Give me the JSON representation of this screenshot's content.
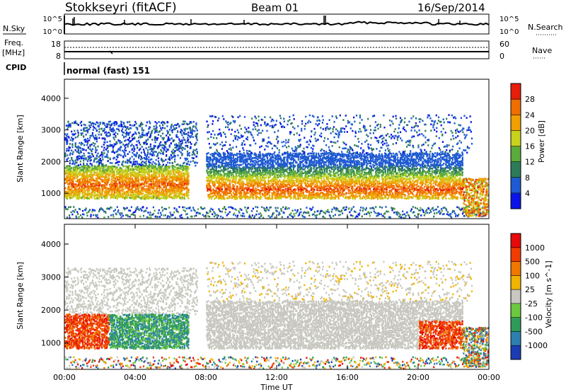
{
  "header": {
    "station": "Stokkseyri (fitACF)",
    "beam": "Beam 01",
    "date": "16/Sep/2014"
  },
  "noise_panel": {
    "left_label": "N.Sky",
    "right_label": "N.Search",
    "left_ticks": [
      "10^5",
      "10^0"
    ],
    "right_ticks": [
      "10^5",
      "10^0"
    ]
  },
  "freq_panel": {
    "left_label_top": "Freq.",
    "left_label_unit": "[MHz]",
    "left_ticks": [
      "18",
      "8"
    ],
    "right_label": "Nave",
    "right_ticks": [
      "60",
      "0"
    ]
  },
  "cpid": {
    "label": "CPID",
    "value": "normal (fast) 151"
  },
  "chart_data": [
    {
      "type": "heatmap",
      "title": "",
      "parameter": "Power",
      "ylabel": "Slant Range [km]",
      "xlabel": "",
      "ylim": [
        200,
        4600
      ],
      "yticks": [
        "1000",
        "2000",
        "3000",
        "4000"
      ],
      "colorbar": {
        "label": "Power [dB]",
        "ticks": [
          "28",
          "24",
          "20",
          "16",
          "12",
          "8",
          "4"
        ],
        "colors": [
          "#0a14e6",
          "#1e5ad2",
          "#2e7b5a",
          "#5aaa3c",
          "#c8d21e",
          "#f0a000",
          "#f06e00",
          "#e61e0a"
        ]
      }
    },
    {
      "type": "heatmap",
      "title": "",
      "parameter": "Velocity",
      "ylabel": "Slant Range [km]",
      "xlabel": "Time UT",
      "ylim": [
        200,
        4600
      ],
      "yticks": [
        "1000",
        "2000",
        "3000",
        "4000"
      ],
      "xticks": [
        "00:00",
        "04:00",
        "08:00",
        "12:00",
        "16:00",
        "20:00",
        "00:00"
      ],
      "colorbar": {
        "label": "Velocity [m s^-1]",
        "ticks": [
          "1000",
          "500",
          "100",
          "25",
          "-25",
          "-100",
          "-500",
          "-1000"
        ],
        "colors": [
          "#1c3cb4",
          "#2d7fb0",
          "#2e9b5a",
          "#6cc840",
          "#c8c8c0",
          "#f0b400",
          "#f07800",
          "#f03c00",
          "#e60a0a"
        ]
      }
    }
  ]
}
